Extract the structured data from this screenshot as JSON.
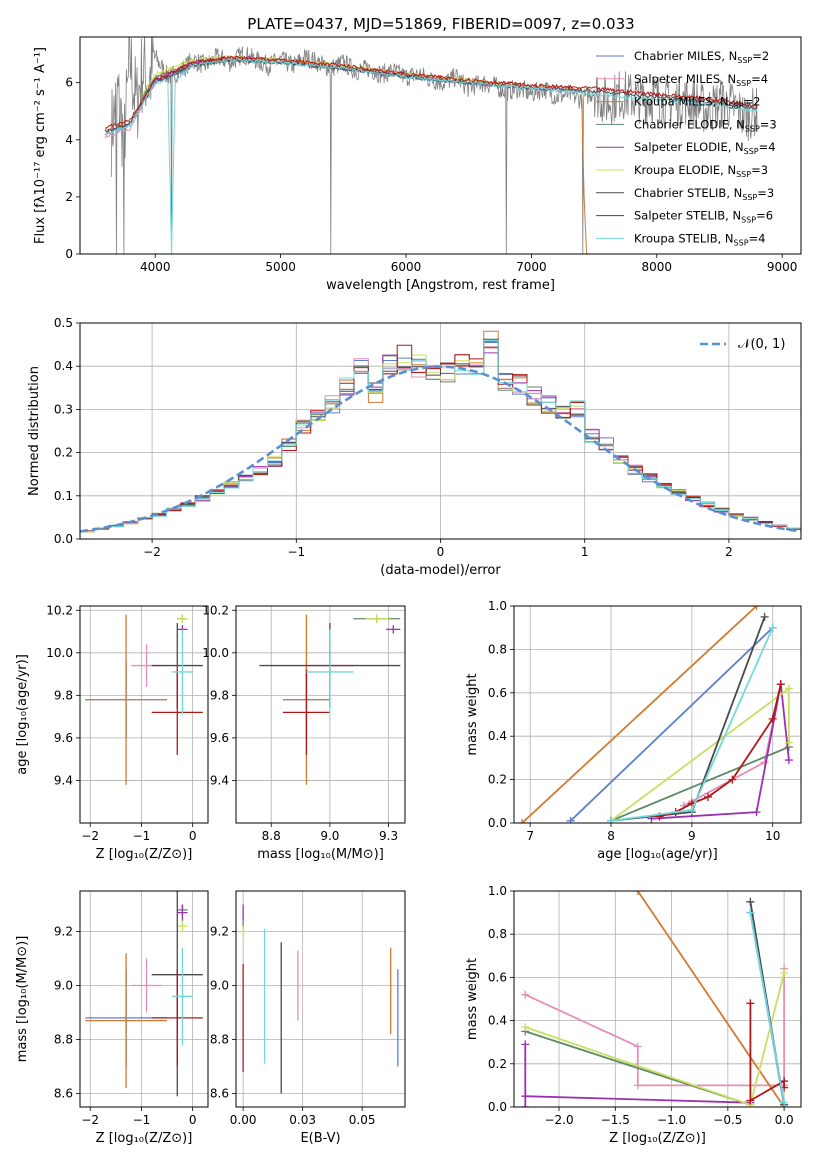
{
  "figure_title": "PLATE=0437, MJD=51869, FIBERID=0097, z=0.033",
  "colors": {
    "Chabrier MILES": "#5b7fcf",
    "Salpeter MILES": "#e58fb6",
    "Kroupa MILES": "#d07a33",
    "Chabrier ELODIE": "#5f8a68",
    "Salpeter ELODIE": "#9b30b0",
    "Kroupa ELODIE": "#c8e060",
    "Chabrier STELIB": "#4a4a4a",
    "Salpeter STELIB": "#b01818",
    "Kroupa STELIB": "#72d8dc",
    "data": "#808080",
    "normal": "#5b8fd0"
  },
  "chart_data": [
    {
      "id": "spectrum",
      "type": "line",
      "title": "PLATE=0437, MJD=51869, FIBERID=0097, z=0.033",
      "xlabel": "wavelength [Angstrom, rest frame]",
      "ylabel": "Flux [fλ10⁻¹⁷ erg cm⁻² s⁻¹ A⁻¹]",
      "xlim": [
        3400,
        9150
      ],
      "ylim": [
        0,
        7.6
      ],
      "xticks": [
        4000,
        5000,
        6000,
        7000,
        8000,
        9000
      ],
      "yticks": [
        0,
        2,
        4,
        6
      ],
      "legend_position": "top-right",
      "data_x": [
        3650,
        3700,
        3750,
        3800,
        3850,
        3900,
        3950,
        4000,
        4100,
        4200,
        4300,
        4400,
        4500,
        4600,
        4700,
        4800,
        4900,
        5000,
        5100,
        5200,
        5300,
        5400,
        5500,
        5600,
        5700,
        5800,
        5900,
        6000,
        6100,
        6200,
        6300,
        6400,
        6500,
        6600,
        6700,
        6800,
        6900,
        7000,
        7100,
        7200,
        7300,
        7400,
        7500,
        7600,
        7700,
        7800,
        7900,
        8000,
        8100,
        8200,
        8300,
        8400,
        8500,
        8600,
        8700,
        8800
      ],
      "data_y": [
        4.3,
        5.6,
        4.0,
        6.8,
        5.2,
        6.5,
        6.0,
        6.9,
        6.2,
        6.4,
        6.8,
        6.6,
        6.9,
        6.7,
        7.0,
        6.8,
        6.6,
        6.8,
        6.6,
        6.9,
        6.7,
        6.5,
        6.7,
        6.4,
        6.5,
        6.3,
        6.4,
        6.2,
        6.3,
        6.1,
        6.0,
        6.2,
        5.8,
        6.0,
        5.9,
        5.7,
        5.8,
        5.6,
        5.8,
        5.5,
        5.6,
        5.4,
        5.7,
        5.3,
        5.6,
        5.5,
        5.4,
        5.5,
        5.2,
        5.4,
        5.3,
        5.0,
        5.3,
        5.2,
        4.8,
        5.0
      ],
      "dropouts": [
        3690,
        3750,
        4130,
        5400,
        6800,
        7410
      ],
      "series": [
        {
          "name": "Chabrier MILES, N_SSP=2",
          "x": [
            3600,
            3800,
            4000,
            4300,
            4600,
            5000,
            5500,
            6000,
            6500,
            7000,
            7400
          ],
          "y": [
            4.2,
            4.5,
            6.0,
            6.6,
            6.8,
            6.7,
            6.5,
            6.2,
            6.0,
            5.8,
            5.7
          ]
        },
        {
          "name": "Salpeter MILES, N_SSP=4",
          "x": [
            3600,
            3800,
            4000,
            4300,
            4600,
            5000,
            5500,
            6000,
            6500,
            7000,
            7400
          ],
          "y": [
            4.1,
            4.4,
            6.1,
            6.7,
            6.9,
            6.8,
            6.5,
            6.3,
            6.0,
            5.8,
            5.7
          ]
        },
        {
          "name": "Kroupa MILES, N_SSP=2",
          "x": [
            3600,
            3800,
            4000,
            4300,
            4600,
            5000,
            5500,
            6000,
            6500,
            7000,
            7400,
            7420,
            7440
          ],
          "y": [
            4.3,
            4.6,
            6.2,
            6.7,
            6.9,
            6.8,
            6.6,
            6.3,
            6.1,
            5.9,
            5.8,
            2.0,
            0.0
          ]
        },
        {
          "name": "Chabrier ELODIE, N_SSP=3",
          "x": [
            3900,
            4000,
            4300,
            4600,
            5000,
            5500,
            6000,
            6500,
            6800
          ],
          "y": [
            5.5,
            6.2,
            6.6,
            6.8,
            6.7,
            6.5,
            6.2,
            6.0,
            5.9
          ]
        },
        {
          "name": "Salpeter ELODIE, N_SSP=4",
          "x": [
            3900,
            4000,
            4300,
            4600,
            5000,
            5500,
            6000,
            6500,
            6800
          ],
          "y": [
            5.4,
            6.1,
            6.7,
            6.9,
            6.8,
            6.5,
            6.3,
            6.0,
            5.9
          ]
        },
        {
          "name": "Kroupa ELODIE, N_SSP=3",
          "x": [
            3900,
            4000,
            4300,
            4600,
            5000,
            5500,
            6000,
            6500,
            6800
          ],
          "y": [
            5.6,
            6.3,
            6.8,
            6.9,
            6.8,
            6.6,
            6.3,
            6.1,
            5.9
          ]
        },
        {
          "name": "Chabrier STELIB, N_SSP=3",
          "x": [
            3600,
            3800,
            4000,
            4300,
            4600,
            5000,
            5500,
            6000,
            6500,
            7000,
            7500,
            8000,
            8500,
            8800
          ],
          "y": [
            4.3,
            4.6,
            6.0,
            6.6,
            6.8,
            6.7,
            6.5,
            6.2,
            6.0,
            5.8,
            5.7,
            5.5,
            5.3,
            5.1
          ]
        },
        {
          "name": "Salpeter STELIB, N_SSP=6",
          "x": [
            3600,
            3800,
            4000,
            4300,
            4600,
            5000,
            5500,
            6000,
            6500,
            7000,
            7500,
            8000,
            8500,
            8800
          ],
          "y": [
            4.4,
            4.7,
            6.1,
            6.7,
            6.9,
            6.8,
            6.6,
            6.3,
            6.1,
            5.9,
            5.8,
            5.6,
            5.4,
            5.2
          ]
        },
        {
          "name": "Kroupa STELIB, N_SSP=4",
          "x": [
            3600,
            3800,
            4000,
            4100,
            4130,
            4160,
            4300,
            4600,
            5000,
            5500,
            6000,
            6500,
            7000,
            7500,
            8000,
            8500,
            8800
          ],
          "y": [
            4.2,
            4.5,
            6.0,
            6.1,
            0.0,
            6.1,
            6.6,
            6.8,
            6.7,
            6.5,
            6.2,
            6.0,
            5.8,
            5.6,
            5.4,
            5.2,
            5.0
          ]
        }
      ]
    },
    {
      "id": "residuals",
      "type": "line",
      "xlabel": "(data-model)/error",
      "ylabel": "Normed distribution",
      "xlim": [
        -2.5,
        2.5
      ],
      "ylim": [
        0,
        0.5
      ],
      "xticks": [
        -2,
        -1,
        0,
        1,
        2
      ],
      "yticks": [
        0.0,
        0.1,
        0.2,
        0.3,
        0.4,
        0.5
      ],
      "legend_position": "top-right",
      "bin_width": 0.1,
      "normal_label": "𝒩(0, 1)",
      "bins": [
        -2.5,
        -2.4,
        -2.3,
        -2.2,
        -2.1,
        -2.0,
        -1.9,
        -1.8,
        -1.7,
        -1.6,
        -1.5,
        -1.4,
        -1.3,
        -1.2,
        -1.1,
        -1.0,
        -0.9,
        -0.8,
        -0.7,
        -0.6,
        -0.5,
        -0.4,
        -0.3,
        -0.2,
        -0.1,
        0.0,
        0.1,
        0.2,
        0.3,
        0.4,
        0.5,
        0.6,
        0.7,
        0.8,
        0.9,
        1.0,
        1.1,
        1.2,
        1.3,
        1.4,
        1.5,
        1.6,
        1.7,
        1.8,
        1.9,
        2.0,
        2.1,
        2.2,
        2.3,
        2.4
      ],
      "heights": [
        0.018,
        0.024,
        0.03,
        0.038,
        0.047,
        0.056,
        0.067,
        0.08,
        0.094,
        0.109,
        0.125,
        0.142,
        0.16,
        0.18,
        0.22,
        0.26,
        0.28,
        0.31,
        0.35,
        0.4,
        0.34,
        0.41,
        0.42,
        0.4,
        0.38,
        0.39,
        0.41,
        0.4,
        0.45,
        0.37,
        0.36,
        0.33,
        0.31,
        0.29,
        0.3,
        0.24,
        0.22,
        0.18,
        0.16,
        0.142,
        0.125,
        0.109,
        0.094,
        0.08,
        0.067,
        0.056,
        0.047,
        0.038,
        0.03,
        0.024
      ]
    },
    {
      "id": "age-vs-Z",
      "type": "scatter",
      "xlabel": "Z [log₁₀(Z/Z⊙)]",
      "ylabel": "age  [log₁₀(age/yr)]",
      "xlim": [
        -2.2,
        0.3
      ],
      "ylim": [
        9.2,
        10.22
      ],
      "xticks": [
        -2,
        -1,
        0
      ],
      "yticks": [
        9.4,
        9.6,
        9.8,
        10.0,
        10.2
      ],
      "points": [
        {
          "x": -1.3,
          "y": 9.78,
          "xerr": 0.8,
          "yerr": 0.18
        },
        {
          "x": -0.9,
          "y": 9.94,
          "xerr": 0.3,
          "yerr": 0.1
        },
        {
          "x": -1.3,
          "y": 9.78,
          "xerr": 0.8,
          "yerr": 0.4
        },
        {
          "x": -0.2,
          "y": 10.16,
          "xerr": 0.1,
          "yerr": 0.02
        },
        {
          "x": -0.2,
          "y": 10.11,
          "xerr": 0.1,
          "yerr": 0.02
        },
        {
          "x": -0.2,
          "y": 10.16,
          "xerr": 0.1,
          "yerr": 0.02
        },
        {
          "x": -0.3,
          "y": 9.94,
          "xerr": 0.5,
          "yerr": 0.2
        },
        {
          "x": -0.3,
          "y": 9.72,
          "xerr": 0.5,
          "yerr": 0.2
        },
        {
          "x": -0.2,
          "y": 9.91,
          "xerr": 0.2,
          "yerr": 0.2
        }
      ]
    },
    {
      "id": "age-vs-mass",
      "type": "scatter",
      "xlabel": "mass [log₁₀(M/M⊙)]",
      "ylabel": "",
      "xlim": [
        8.6,
        9.32
      ],
      "ylim": [
        9.2,
        10.22
      ],
      "xticks": [
        8.75,
        9.0,
        9.25
      ],
      "yticks": [
        9.4,
        9.6,
        9.8,
        10.0,
        10.2
      ],
      "points": [
        {
          "x": 8.9,
          "y": 9.78,
          "xerr": 0.1,
          "yerr": 0.18
        },
        {
          "x": 9.0,
          "y": 9.94,
          "xerr": 0.1,
          "yerr": 0.1
        },
        {
          "x": 8.9,
          "y": 9.78,
          "xerr": 0.1,
          "yerr": 0.4
        },
        {
          "x": 9.2,
          "y": 10.16,
          "xerr": 0.1,
          "yerr": 0.02
        },
        {
          "x": 9.27,
          "y": 10.11,
          "xerr": 0.03,
          "yerr": 0.02
        },
        {
          "x": 9.2,
          "y": 10.16,
          "xerr": 0.05,
          "yerr": 0.02
        },
        {
          "x": 9.0,
          "y": 9.94,
          "xerr": 0.3,
          "yerr": 0.2
        },
        {
          "x": 8.9,
          "y": 9.72,
          "xerr": 0.1,
          "yerr": 0.2
        },
        {
          "x": 9.0,
          "y": 9.91,
          "xerr": 0.1,
          "yerr": 0.2
        }
      ]
    },
    {
      "id": "weight-vs-age",
      "type": "line",
      "xlabel": "age  [log₁₀(age/yr)]",
      "ylabel": "mass weight",
      "xlim": [
        6.8,
        10.35
      ],
      "ylim": [
        0,
        1.0
      ],
      "xticks": [
        7,
        8,
        9,
        10
      ],
      "yticks": [
        0.0,
        0.2,
        0.4,
        0.6,
        0.8,
        1.0
      ],
      "series": [
        {
          "name": "Chabrier MILES",
          "x": [
            7.5,
            10.0
          ],
          "y": [
            0.01,
            0.9
          ]
        },
        {
          "name": "Salpeter MILES",
          "x": [
            8.9,
            9.0,
            9.9,
            10.1
          ],
          "y": [
            0.08,
            0.1,
            0.28,
            0.64
          ]
        },
        {
          "name": "Kroupa MILES",
          "x": [
            6.9,
            9.8
          ],
          "y": [
            0.0,
            1.0
          ]
        },
        {
          "name": "Chabrier ELODIE",
          "x": [
            8.0,
            10.2
          ],
          "y": [
            0.01,
            0.35
          ]
        },
        {
          "name": "Salpeter ELODIE",
          "x": [
            8.5,
            9.8,
            10.1,
            10.2
          ],
          "y": [
            0.02,
            0.05,
            0.64,
            0.29
          ]
        },
        {
          "name": "Kroupa ELODIE",
          "x": [
            8.0,
            10.2,
            10.2
          ],
          "y": [
            0.01,
            0.62,
            0.37
          ]
        },
        {
          "name": "Chabrier STELIB",
          "x": [
            8.0,
            9.0,
            9.9
          ],
          "y": [
            0.01,
            0.05,
            0.95
          ]
        },
        {
          "name": "Salpeter STELIB",
          "x": [
            8.6,
            8.8,
            9.0,
            9.2,
            9.5,
            10.0,
            10.1
          ],
          "y": [
            0.03,
            0.05,
            0.09,
            0.12,
            0.2,
            0.48,
            0.64
          ]
        },
        {
          "name": "Kroupa STELIB",
          "x": [
            8.0,
            9.0,
            10.0
          ],
          "y": [
            0.01,
            0.06,
            0.9
          ]
        }
      ]
    },
    {
      "id": "mass-vs-Z",
      "type": "scatter",
      "xlabel": "Z [log₁₀(Z/Z⊙)]",
      "ylabel": "mass [log₁₀(M/M⊙)]",
      "xlim": [
        -2.2,
        0.3
      ],
      "ylim": [
        8.55,
        9.35
      ],
      "xticks": [
        -2,
        -1,
        0
      ],
      "yticks": [
        8.6,
        8.8,
        9.0,
        9.2
      ],
      "points": [
        {
          "x": -1.3,
          "y": 8.88,
          "xerr": 0.8,
          "yerr": 0.18
        },
        {
          "x": -0.9,
          "y": 9.0,
          "xerr": 0.3,
          "yerr": 0.1
        },
        {
          "x": -1.3,
          "y": 8.87,
          "xerr": 0.8,
          "yerr": 0.25
        },
        {
          "x": -0.2,
          "y": 9.28,
          "xerr": 0.1,
          "yerr": 0.02
        },
        {
          "x": -0.2,
          "y": 9.27,
          "xerr": 0.1,
          "yerr": 0.03
        },
        {
          "x": -0.2,
          "y": 9.22,
          "xerr": 0.1,
          "yerr": 0.02
        },
        {
          "x": -0.3,
          "y": 9.04,
          "xerr": 0.5,
          "yerr": 0.45
        },
        {
          "x": -0.3,
          "y": 8.88,
          "xerr": 0.5,
          "yerr": 0.18
        },
        {
          "x": -0.2,
          "y": 8.96,
          "xerr": 0.2,
          "yerr": 0.18
        }
      ]
    },
    {
      "id": "mass-vs-EBV",
      "type": "scatter",
      "xlabel": "E(B-V)",
      "ylabel": "",
      "xlim": [
        -0.003,
        0.068
      ],
      "ylim": [
        8.55,
        9.35
      ],
      "xticks": [
        0.0,
        0.025,
        0.05
      ],
      "yticks": [
        8.6,
        8.8,
        9.0,
        9.2
      ],
      "points": [
        {
          "x": 0.065,
          "y": 8.88,
          "yerr": 0.18
        },
        {
          "x": 0.023,
          "y": 9.0,
          "yerr": 0.13
        },
        {
          "x": 0.062,
          "y": 8.98,
          "yerr": 0.16
        },
        {
          "x": 0.0,
          "y": 9.22,
          "yerr": 0.02
        },
        {
          "x": 0.0,
          "y": 9.27,
          "yerr": 0.03
        },
        {
          "x": 0.0,
          "y": 9.2,
          "yerr": 0.02
        },
        {
          "x": 0.016,
          "y": 8.88,
          "yerr": 0.28
        },
        {
          "x": 0.0,
          "y": 8.88,
          "yerr": 0.2
        },
        {
          "x": 0.009,
          "y": 8.96,
          "yerr": 0.25
        }
      ]
    },
    {
      "id": "weight-vs-Z",
      "type": "line",
      "xlabel": "Z [log₁₀(Z/Z⊙)]",
      "ylabel": "mass weight",
      "xlim": [
        -2.4,
        0.15
      ],
      "ylim": [
        0,
        1.0
      ],
      "xticks": [
        -2.0,
        -1.5,
        -1.0,
        -0.5,
        0.0
      ],
      "yticks": [
        0.0,
        0.2,
        0.4,
        0.6,
        0.8,
        1.0
      ],
      "series": [
        {
          "name": "Chabrier MILES",
          "x": [
            -0.3,
            0.0
          ],
          "y": [
            0.9,
            0.01
          ]
        },
        {
          "name": "Salpeter MILES",
          "x": [
            -2.3,
            -1.3,
            -1.3,
            0.0,
            0.0
          ],
          "y": [
            0.52,
            0.28,
            0.1,
            0.1,
            0.64
          ]
        },
        {
          "name": "Kroupa MILES",
          "x": [
            -1.3,
            0.0
          ],
          "y": [
            1.0,
            0.0
          ]
        },
        {
          "name": "Chabrier ELODIE",
          "x": [
            -2.3,
            -0.3
          ],
          "y": [
            0.35,
            0.01
          ]
        },
        {
          "name": "Salpeter ELODIE",
          "x": [
            -2.3,
            -2.3,
            -2.3,
            -0.3
          ],
          "y": [
            0.29,
            0.0,
            0.05,
            0.02
          ]
        },
        {
          "name": "Kroupa ELODIE",
          "x": [
            -2.3,
            -0.3,
            0.0
          ],
          "y": [
            0.37,
            0.01,
            0.62
          ]
        },
        {
          "name": "Chabrier STELIB",
          "x": [
            -0.3,
            0.0
          ],
          "y": [
            0.95,
            0.01
          ]
        },
        {
          "name": "Salpeter STELIB",
          "x": [
            -0.3,
            -0.3,
            0.0,
            0.0
          ],
          "y": [
            0.48,
            0.03,
            0.12,
            0.09
          ]
        },
        {
          "name": "Kroupa STELIB",
          "x": [
            -0.3,
            0.0
          ],
          "y": [
            0.9,
            0.02
          ]
        }
      ]
    }
  ]
}
